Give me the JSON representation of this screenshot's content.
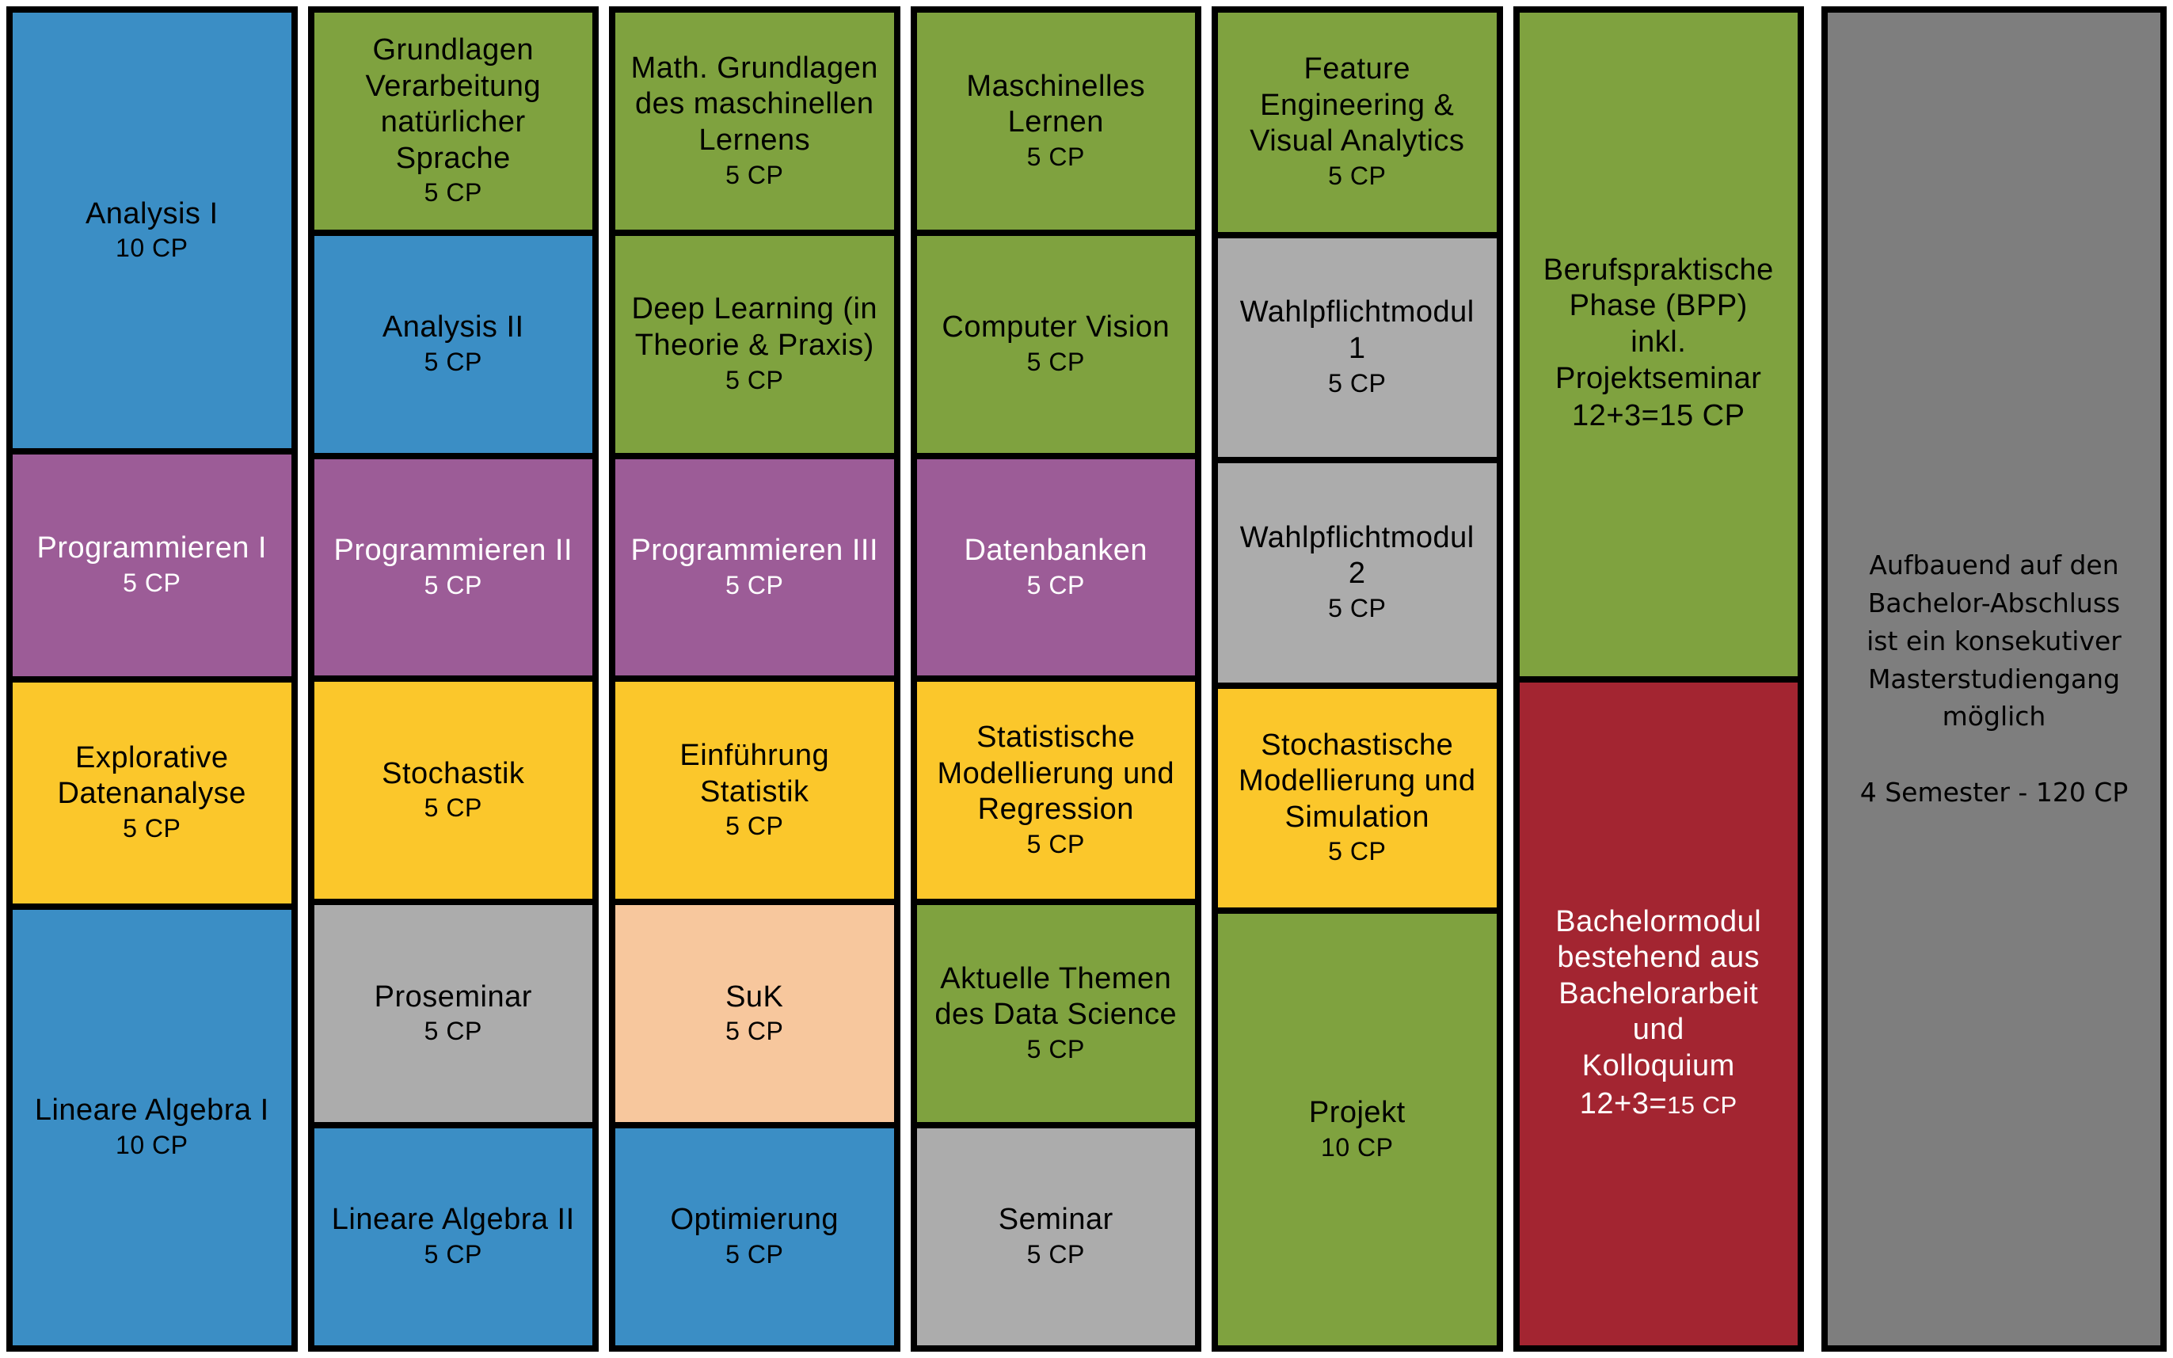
{
  "colors": {
    "blue": "#3B8EC5",
    "purple": "#9C5C97",
    "yellow": "#FBC72B",
    "green": "#7FA23F",
    "gray": "#ACACAC",
    "peach": "#F7C79D",
    "red": "#A32531",
    "panel_gray": "#7E7E7E",
    "border": "#000000"
  },
  "columns": [
    {
      "blocks": [
        {
          "lines": [
            "Analysis I"
          ],
          "cp": "10 CP",
          "color": "blue",
          "text": "dark",
          "span": 2
        },
        {
          "lines": [
            "Programmieren I"
          ],
          "cp": "5 CP",
          "color": "purple",
          "text": "light",
          "span": 1
        },
        {
          "lines": [
            "Explorative",
            "Datenanalyse"
          ],
          "cp": "5 CP",
          "color": "yellow",
          "text": "dark",
          "span": 1
        },
        {
          "lines": [
            "Lineare Algebra I"
          ],
          "cp": "10 CP",
          "color": "blue",
          "text": "dark",
          "span": 2
        }
      ]
    },
    {
      "blocks": [
        {
          "lines": [
            "Grundlagen",
            "Verarbeitung",
            "natürlicher",
            "Sprache"
          ],
          "cp": "5 CP",
          "color": "green",
          "text": "dark",
          "span": 1
        },
        {
          "lines": [
            "Analysis II"
          ],
          "cp": "5 CP",
          "color": "blue",
          "text": "dark",
          "span": 1
        },
        {
          "lines": [
            "Programmieren II"
          ],
          "cp": "5 CP",
          "color": "purple",
          "text": "light",
          "span": 1
        },
        {
          "lines": [
            "Stochastik"
          ],
          "cp": "5 CP",
          "color": "yellow",
          "text": "dark",
          "span": 1
        },
        {
          "lines": [
            "Proseminar"
          ],
          "cp": "5 CP",
          "color": "gray",
          "text": "dark",
          "span": 1
        },
        {
          "lines": [
            "Lineare Algebra II"
          ],
          "cp": "5 CP",
          "color": "blue",
          "text": "dark",
          "span": 1
        }
      ]
    },
    {
      "blocks": [
        {
          "lines": [
            "Math. Grundlagen",
            "des maschinellen",
            "Lernens"
          ],
          "cp": "5 CP",
          "color": "green",
          "text": "dark",
          "span": 1
        },
        {
          "lines": [
            "Deep Learning (in",
            "Theorie & Praxis)"
          ],
          "cp": "5 CP",
          "color": "green",
          "text": "dark",
          "span": 1
        },
        {
          "lines": [
            "Programmieren III"
          ],
          "cp": "5 CP",
          "color": "purple",
          "text": "light",
          "span": 1
        },
        {
          "lines": [
            "Einführung",
            "Statistik"
          ],
          "cp": "5 CP",
          "color": "yellow",
          "text": "dark",
          "span": 1
        },
        {
          "lines": [
            "SuK"
          ],
          "cp": "5 CP",
          "color": "peach",
          "text": "dark",
          "span": 1
        },
        {
          "lines": [
            "Optimierung"
          ],
          "cp": "5 CP",
          "color": "blue",
          "text": "dark",
          "span": 1
        }
      ]
    },
    {
      "blocks": [
        {
          "lines": [
            "Maschinelles",
            "Lernen"
          ],
          "cp": "5 CP",
          "color": "green",
          "text": "dark",
          "span": 1
        },
        {
          "lines": [
            "Computer Vision"
          ],
          "cp": "5 CP",
          "color": "green",
          "text": "dark",
          "span": 1
        },
        {
          "lines": [
            "Datenbanken"
          ],
          "cp": "5 CP",
          "color": "purple",
          "text": "light",
          "span": 1
        },
        {
          "lines": [
            "Statistische",
            "Modellierung und",
            "Regression"
          ],
          "cp": "5 CP",
          "color": "yellow",
          "text": "dark",
          "span": 1
        },
        {
          "lines": [
            "Aktuelle Themen",
            "des Data Science"
          ],
          "cp": "5 CP",
          "color": "green",
          "text": "dark",
          "span": 1
        },
        {
          "lines": [
            "Seminar"
          ],
          "cp": "5 CP",
          "color": "gray",
          "text": "dark",
          "span": 1
        }
      ]
    },
    {
      "blocks": [
        {
          "lines": [
            "Feature",
            "Engineering &",
            "Visual Analytics"
          ],
          "cp": "5 CP",
          "color": "green",
          "text": "dark",
          "span": 1
        },
        {
          "lines": [
            "Wahlpflichtmodul",
            "1"
          ],
          "cp": "5 CP",
          "color": "gray",
          "text": "dark",
          "span": 1
        },
        {
          "lines": [
            "Wahlpflichtmodul",
            "2"
          ],
          "cp": "5 CP",
          "color": "gray",
          "text": "dark",
          "span": 1
        },
        {
          "lines": [
            "Stochastische",
            "Modellierung und",
            "Simulation"
          ],
          "cp": "5 CP",
          "color": "yellow",
          "text": "dark",
          "span": 1
        },
        {
          "lines": [
            "Projekt"
          ],
          "cp": "10 CP",
          "color": "green",
          "text": "dark",
          "span": 2
        }
      ]
    },
    {
      "blocks": [
        {
          "lines": [
            "Berufspraktische",
            "Phase (BPP)",
            "inkl.",
            "Projektseminar"
          ],
          "cp": "12+3=15 CP",
          "cp_large": true,
          "color": "green",
          "text": "dark",
          "span": 3
        },
        {
          "lines": [
            "Bachelormodul",
            "bestehend aus",
            "Bachelorarbeit",
            "und",
            "Kolloquium"
          ],
          "cp_split": {
            "big": "12+3=",
            "small": "15 CP"
          },
          "color": "red",
          "text": "light",
          "span": 3
        }
      ]
    }
  ],
  "info_panel": {
    "lines": [
      "Aufbauend auf den",
      "Bachelor-Abschluss",
      "ist ein konsekutiver",
      "Masterstudiengang",
      "möglich",
      "",
      "4 Semester - 120 CP"
    ]
  }
}
